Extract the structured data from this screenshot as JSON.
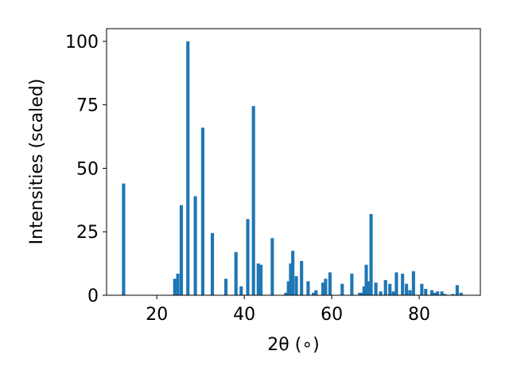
{
  "chart_data": {
    "type": "bar",
    "title": "",
    "xlabel": "2θ (∘)",
    "ylabel": "Intensities (scaled)",
    "xlim": [
      8.5,
      94
    ],
    "ylim": [
      0,
      105
    ],
    "bar_width": 0.75,
    "color": "#1f77b4",
    "grid": false,
    "xticks": [
      20,
      40,
      60,
      80
    ],
    "yticks": [
      0,
      25,
      50,
      75,
      100
    ],
    "x": [
      12.4,
      24.1,
      24.8,
      25.6,
      27.1,
      28.8,
      30.5,
      32.7,
      35.8,
      38.1,
      39.3,
      40.8,
      42.1,
      43.2,
      43.8,
      46.4,
      49.5,
      50.1,
      50.6,
      51.1,
      51.9,
      53.1,
      54.6,
      55.8,
      56.4,
      58.0,
      58.6,
      59.6,
      62.4,
      64.6,
      66.4,
      66.9,
      67.4,
      67.9,
      68.4,
      69.0,
      70.1,
      71.2,
      72.3,
      73.3,
      74.1,
      74.8,
      76.2,
      77.1,
      77.9,
      78.7,
      80.6,
      81.5,
      82.9,
      83.6,
      84.2,
      85.2,
      85.9,
      87.7,
      88.7,
      89.6
    ],
    "values": [
      44,
      6.5,
      8.5,
      35.5,
      100,
      39,
      66,
      24.5,
      6.5,
      17,
      3.5,
      30,
      74.5,
      12.5,
      12,
      22.5,
      1,
      5.5,
      12.5,
      17.5,
      7.5,
      13.5,
      5.5,
      1,
      2,
      5,
      6.5,
      9,
      4.5,
      8.5,
      1,
      1,
      3.5,
      12,
      5.5,
      32,
      5,
      1.5,
      6,
      4.5,
      1.5,
      9,
      8.5,
      4.5,
      2,
      9.5,
      4.5,
      2.5,
      2,
      1,
      1.5,
      1.5,
      0.5,
      0.5,
      4,
      1
    ]
  }
}
